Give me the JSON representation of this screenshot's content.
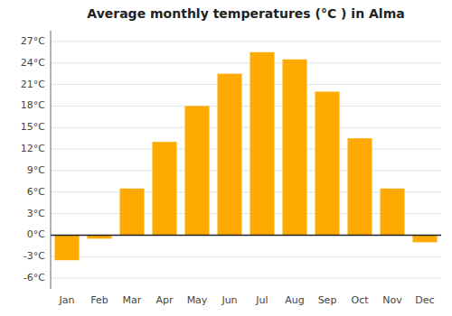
{
  "chart_data": {
    "type": "bar",
    "title": "Average monthly temperatures (°C ) in Alma",
    "categories": [
      "Jan",
      "Feb",
      "Mar",
      "Apr",
      "May",
      "Jun",
      "Jul",
      "Aug",
      "Sep",
      "Oct",
      "Nov",
      "Dec"
    ],
    "values": [
      -3.5,
      -0.5,
      6.5,
      13.0,
      18.0,
      22.5,
      25.5,
      24.5,
      20.0,
      13.5,
      6.5,
      -1.0
    ],
    "color": "#FFAA00",
    "ylim": [
      -7.5,
      28.5
    ],
    "yticks": [
      {
        "value": -6,
        "label": "-6°C"
      },
      {
        "value": -3,
        "label": "-3°C"
      },
      {
        "value": 0,
        "label": "0°C"
      },
      {
        "value": 3,
        "label": "3°C"
      },
      {
        "value": 6,
        "label": "6°C"
      },
      {
        "value": 9,
        "label": "9°C"
      },
      {
        "value": 12,
        "label": "12°C"
      },
      {
        "value": 15,
        "label": "15°C"
      },
      {
        "value": 18,
        "label": "18°C"
      },
      {
        "value": 21,
        "label": "21°C"
      },
      {
        "value": 24,
        "label": "24°C"
      },
      {
        "value": 27,
        "label": "27°C"
      }
    ],
    "grid": true
  }
}
